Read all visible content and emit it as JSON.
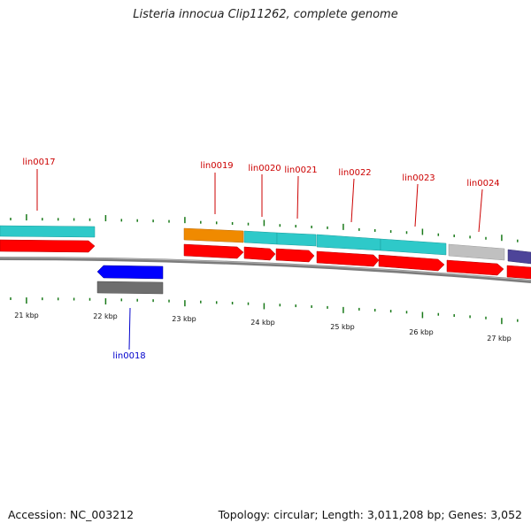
{
  "title": "Listeria innocua Clip11262, complete genome",
  "footer": {
    "accession": "Accession: NC_003212",
    "summary": "Topology: circular; Length: 3,011,208 bp; Genes: 3,052"
  },
  "colors": {
    "backbone": "#808080",
    "forward_cds": "#ff0000",
    "reverse_cds": "#0000ff",
    "tick": "#1a7a1a",
    "gene_label_forward": "#cc0000",
    "gene_label_reverse": "#0000cc"
  },
  "scale_labels": [
    "21 kbp",
    "22 kbp",
    "23 kbp",
    "24 kbp",
    "25 kbp",
    "26 kbp",
    "27 kbp"
  ],
  "gene_labels": [
    {
      "id": "lin0017",
      "strand": "forward"
    },
    {
      "id": "lin0018",
      "strand": "reverse"
    },
    {
      "id": "lin0019",
      "strand": "forward"
    },
    {
      "id": "lin0020",
      "strand": "forward"
    },
    {
      "id": "lin0021",
      "strand": "forward"
    },
    {
      "id": "lin0022",
      "strand": "forward"
    },
    {
      "id": "lin0023",
      "strand": "forward"
    },
    {
      "id": "lin0024",
      "strand": "forward"
    }
  ],
  "feature_colors": {
    "cog_cyan": "#2ec9c9",
    "cog_orange": "#f08a00",
    "cog_gray": "#bdbdbd",
    "cog_darkgray": "#6e6e6e",
    "cog_purple": "#4d4499"
  }
}
